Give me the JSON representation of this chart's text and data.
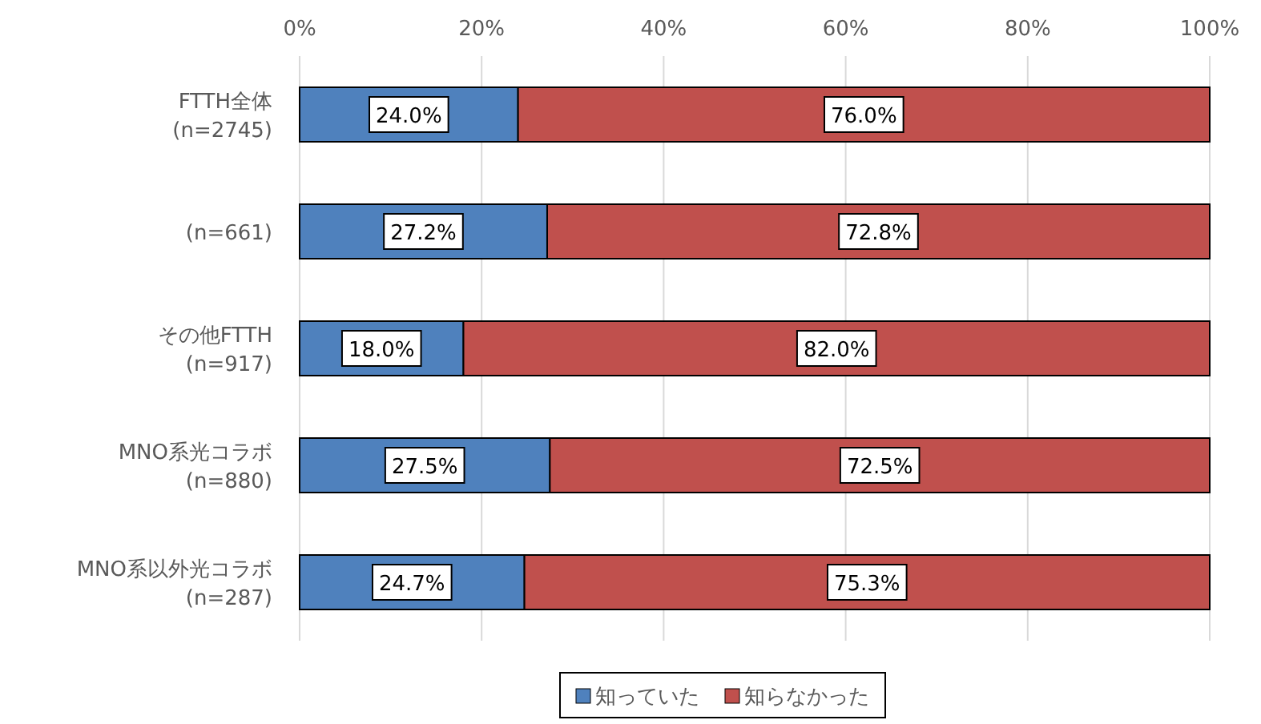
{
  "chart_data": {
    "type": "bar",
    "orientation": "horizontal",
    "stacked": true,
    "categories": [
      "FTTH全体 (n=2745)",
      "(n=661)",
      "その他FTTH (n=917)",
      "MNO系光コラボ (n=880)",
      "MNO系以外光コラボ (n=287)"
    ],
    "series": [
      {
        "name": "知っていた",
        "color": "#4f81bd",
        "values": [
          24.0,
          27.2,
          18.0,
          27.5,
          24.7
        ],
        "value_labels": [
          "24.0%",
          "27.2%",
          "18.0%",
          "27.5%",
          "24.7%"
        ]
      },
      {
        "name": "知らなかった",
        "color": "#c0504d",
        "values": [
          76.0,
          72.8,
          82.0,
          72.5,
          75.3
        ],
        "value_labels": [
          "76.0%",
          "72.8%",
          "82.0%",
          "72.5%",
          "75.3%"
        ]
      }
    ],
    "xlim": [
      0,
      100
    ],
    "xticks": [
      {
        "value": 0,
        "label": "0%"
      },
      {
        "value": 20,
        "label": "20%"
      },
      {
        "value": 40,
        "label": "40%"
      },
      {
        "value": 60,
        "label": "60%"
      },
      {
        "value": 80,
        "label": "80%"
      },
      {
        "value": 100,
        "label": "100%"
      }
    ],
    "grid": "x",
    "legend": "bottom"
  }
}
